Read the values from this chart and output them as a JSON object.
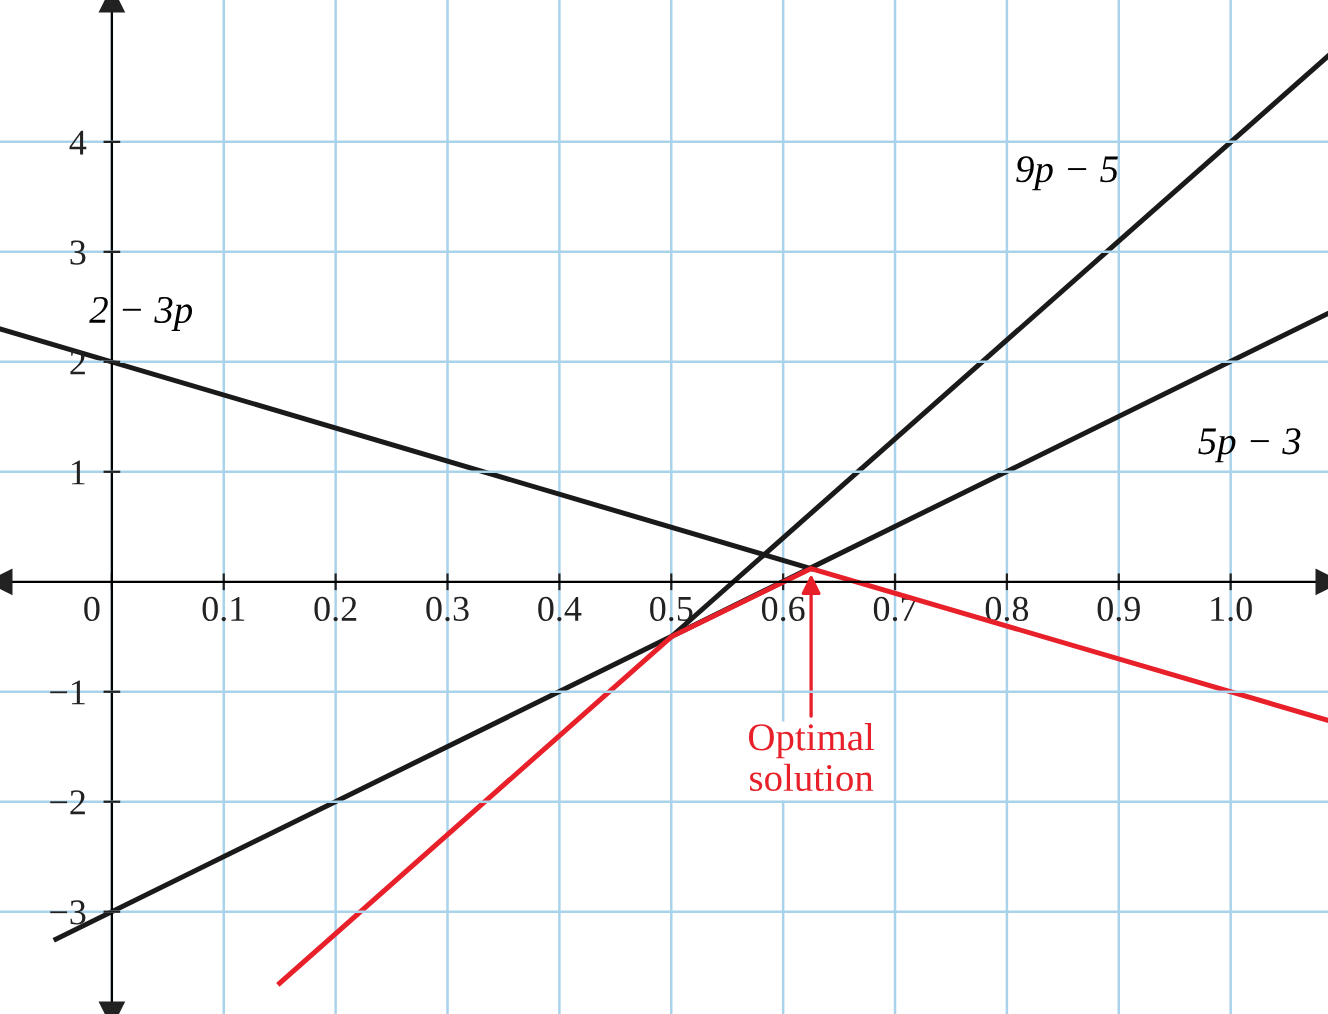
{
  "chart_data": {
    "type": "line",
    "series": [
      {
        "name": "2 − 3p",
        "color": "#1a1a1a",
        "x": [
          -0.1,
          0.625
        ],
        "values": [
          2.3,
          0.12
        ]
      },
      {
        "name": "5p − 3",
        "color": "#1a1a1a",
        "x": [
          -0.05,
          1.087
        ],
        "values": [
          -3.25,
          2.44
        ]
      },
      {
        "name": "9p − 5",
        "color": "#1a1a1a",
        "x": [
          0.5,
          1.087
        ],
        "values": [
          -0.5,
          4.78
        ]
      },
      {
        "color": "#e8202a",
        "x": [
          0.15,
          0.5,
          0.625,
          1.087
        ],
        "values": [
          -3.65,
          -0.5,
          0.12,
          -1.26
        ]
      }
    ],
    "xlim": [
      -0.1,
      1.087
    ],
    "ylim": [
      -3.93,
      5.29
    ],
    "xticks": [
      {
        "value": 0,
        "label": "0"
      },
      0.1,
      0.2,
      0.3,
      0.4,
      0.5,
      0.6,
      0.7,
      0.8,
      0.9,
      {
        "value": 1.0,
        "label": "1.0"
      }
    ],
    "yticks": [
      {
        "value": -3,
        "label": "−3"
      },
      {
        "value": -2,
        "label": "−2"
      },
      {
        "value": -1,
        "label": "−1"
      },
      1,
      2,
      3,
      4
    ],
    "grid": true,
    "legend": false,
    "annotations": [
      {
        "text": "Optimal\nsolution",
        "x": 0.625,
        "y": 0.12
      }
    ]
  }
}
